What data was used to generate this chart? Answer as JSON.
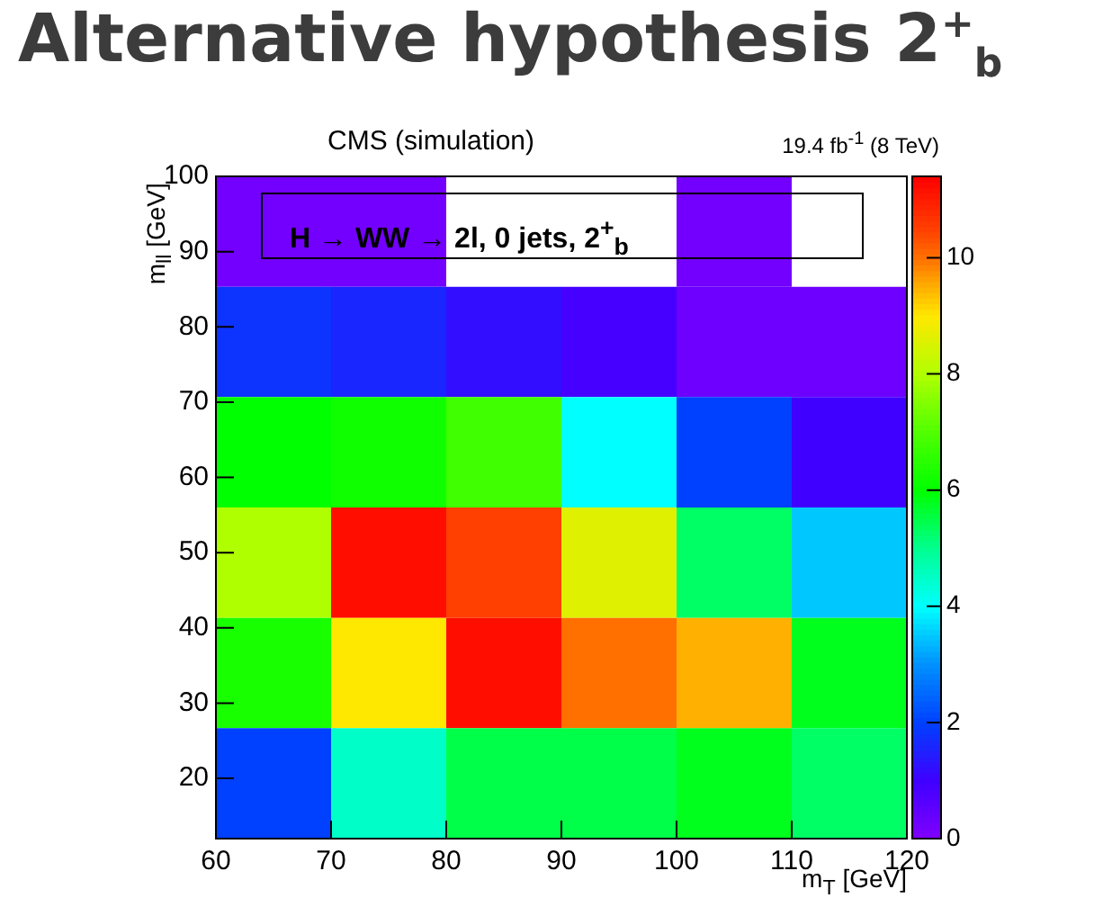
{
  "chart_data": {
    "type": "heatmap",
    "title": "Alternative hypothesis 2$^{+}$$_{b}$",
    "subtitle": "CMS (simulation)",
    "xlabel": "m$_{T}$ [GeV]",
    "ylabel": "m$_{ll}$ [GeV]",
    "annotations": [
      "19.4 fb$^{-1}$ (8 TeV)",
      "H → WW → 2l, 0 jets, 2$^{+}$$_{b}$"
    ],
    "x": [
      65,
      75,
      85,
      95,
      105,
      115
    ],
    "y": [
      92.67,
      78,
      63.33,
      48.67,
      34,
      19.33
    ],
    "xlim": [
      60,
      120
    ],
    "xticks": [
      60,
      70,
      80,
      90,
      100,
      110,
      120
    ],
    "ylim": [
      12,
      100
    ],
    "yticks": [
      20,
      30,
      40,
      50,
      60,
      70,
      80,
      90,
      100
    ],
    "cells": [
      [
        0.2,
        0.2,
        null,
        null,
        0.2,
        null
      ],
      [
        1.8,
        1.6,
        1.2,
        0.9,
        0.3,
        0.3
      ],
      [
        6,
        6.2,
        6.8,
        4,
        2,
        1
      ],
      [
        8,
        11.2,
        10.5,
        8.6,
        5.3,
        3.5
      ],
      [
        6.3,
        9,
        11.2,
        10,
        9.5,
        5.8
      ],
      [
        2,
        4.5,
        5.5,
        5.5,
        5.8,
        5.3
      ]
    ],
    "clim": [
      0,
      11.4
    ],
    "cticks": [
      0,
      2,
      4,
      6,
      8,
      10
    ]
  }
}
